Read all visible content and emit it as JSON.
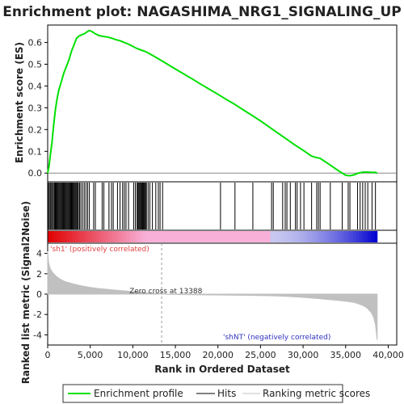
{
  "chart_data": {
    "type": "line",
    "title": "Enrichment plot: NAGASHIMA_NRG1_SIGNALING_UP",
    "xlabel": "Rank in Ordered Dataset",
    "ylabel_top": "Enrichment score (ES)",
    "ylabel_bottom": "Ranked list metric (Signal2Noise)",
    "x_ticks": [
      "0",
      "5,000",
      "10,000",
      "15,000",
      "20,000",
      "25,000",
      "30,000",
      "35,000",
      "40,000"
    ],
    "x_tick_values": [
      0,
      5000,
      10000,
      15000,
      20000,
      25000,
      30000,
      35000,
      40000
    ],
    "xlim": [
      0,
      41000
    ],
    "es_ylim": [
      -0.04,
      0.68
    ],
    "es_ticks": [
      "0.0",
      "0.1",
      "0.2",
      "0.3",
      "0.4",
      "0.5",
      "0.6"
    ],
    "es_tick_values": [
      0.0,
      0.1,
      0.2,
      0.3,
      0.4,
      0.5,
      0.6
    ],
    "metric_ylim": [
      -5,
      5
    ],
    "metric_ticks": [
      "4",
      "2",
      "0",
      "-2",
      "-4"
    ],
    "metric_tick_values": [
      4,
      2,
      0,
      -2,
      -4
    ],
    "series": [
      {
        "name": "Enrichment profile",
        "color": "#00e000",
        "x": [
          0,
          150,
          300,
          500,
          700,
          900,
          1100,
          1300,
          1600,
          1900,
          2200,
          2500,
          2800,
          3100,
          3400,
          3700,
          4000,
          4300,
          4600,
          4900,
          5200,
          5600,
          6000,
          6500,
          7000,
          7500,
          8000,
          8500,
          9000,
          9500,
          10000,
          10500,
          11000,
          11500,
          12000,
          13000,
          14000,
          15000,
          16000,
          17000,
          18000,
          19000,
          20000,
          21000,
          22000,
          23000,
          24000,
          25000,
          26000,
          27000,
          28000,
          29000,
          30000,
          31000,
          31500,
          32000,
          33000,
          34000,
          35000,
          35500,
          36000,
          36500,
          37000,
          37500,
          38000,
          38500,
          38700
        ],
        "values": [
          0.0,
          0.03,
          0.08,
          0.14,
          0.22,
          0.29,
          0.34,
          0.38,
          0.42,
          0.46,
          0.49,
          0.52,
          0.56,
          0.59,
          0.62,
          0.63,
          0.635,
          0.64,
          0.648,
          0.655,
          0.65,
          0.64,
          0.632,
          0.628,
          0.625,
          0.62,
          0.613,
          0.608,
          0.6,
          0.592,
          0.582,
          0.572,
          0.565,
          0.558,
          0.548,
          0.525,
          0.502,
          0.478,
          0.455,
          0.432,
          0.408,
          0.385,
          0.362,
          0.338,
          0.315,
          0.29,
          0.265,
          0.24,
          0.212,
          0.185,
          0.158,
          0.13,
          0.105,
          0.078,
          0.072,
          0.068,
          0.042,
          0.015,
          -0.01,
          -0.012,
          -0.008,
          0.0,
          0.004,
          0.005,
          0.003,
          0.003,
          0.0
        ]
      },
      {
        "name": "Hits",
        "color": "#000000",
        "x": [
          80,
          200,
          320,
          450,
          560,
          680,
          800,
          900,
          1000,
          1100,
          1200,
          1300,
          1400,
          1500,
          1600,
          1700,
          1800,
          1900,
          2000,
          2100,
          2200,
          2300,
          2400,
          2500,
          2600,
          2700,
          2800,
          2900,
          3000,
          3100,
          3200,
          3300,
          3400,
          3500,
          3600,
          3750,
          3900,
          4100,
          4300,
          4500,
          4700,
          4900,
          5400,
          5600,
          6400,
          6600,
          7200,
          7500,
          7700,
          8200,
          8500,
          8800,
          9000,
          9200,
          9500,
          10100,
          10300,
          10500,
          10600,
          10700,
          10800,
          10900,
          11000,
          11100,
          11200,
          11300,
          11400,
          11500,
          11600,
          11800,
          12000,
          12300,
          12700,
          13000,
          13200,
          13500,
          20300,
          22000,
          24100,
          26300,
          26500,
          27600,
          27900,
          28100,
          28500,
          29100,
          29300,
          29700,
          30100,
          31000,
          31600,
          31800,
          32000,
          33200,
          34600,
          35300,
          35500,
          36400,
          36700,
          37000,
          37300,
          37600,
          38100,
          38500
        ]
      },
      {
        "name": "Ranking metric scores",
        "color": "#c0c0c0",
        "x": [
          0,
          100,
          300,
          600,
          1000,
          1500,
          2000,
          3000,
          4000,
          5000,
          6000,
          7000,
          8000,
          9000,
          10000,
          11000,
          12000,
          13000,
          13388,
          14000,
          16000,
          18000,
          20000,
          22000,
          24000,
          26000,
          28000,
          30000,
          32000,
          34000,
          35000,
          36000,
          36500,
          37000,
          37500,
          38000,
          38300,
          38500,
          38700
        ],
        "values": [
          4.2,
          3.1,
          2.5,
          2.1,
          1.75,
          1.45,
          1.25,
          1.0,
          0.8,
          0.65,
          0.55,
          0.47,
          0.39,
          0.32,
          0.25,
          0.18,
          0.11,
          0.04,
          0.0,
          -0.02,
          -0.05,
          -0.07,
          -0.09,
          -0.11,
          -0.13,
          -0.16,
          -0.22,
          -0.32,
          -0.45,
          -0.6,
          -0.7,
          -0.82,
          -0.95,
          -1.1,
          -1.35,
          -1.8,
          -2.3,
          -3.0,
          -4.5
        ]
      }
    ],
    "zero_cross_rank": 13388,
    "colorbar_boundary": 26200,
    "annotations": {
      "zero_cross": "Zero cross at 13388",
      "positive": "'sh1' (positively correlated)",
      "negative": "'shNT' (negatively correlated)"
    },
    "legend": {
      "placement": "bottom",
      "entries": [
        "Enrichment profile",
        "Hits",
        "Ranking metric scores"
      ]
    },
    "colors": {
      "es_line": "#00e000",
      "positive_label": "#e04040",
      "negative_label": "#3030c0",
      "metric_fill": "#c0c0c0",
      "bar_red": "#e00000",
      "bar_pink": "#f8b0d8",
      "bar_lavender": "#c8c8f0",
      "bar_blue": "#0000d0"
    }
  }
}
